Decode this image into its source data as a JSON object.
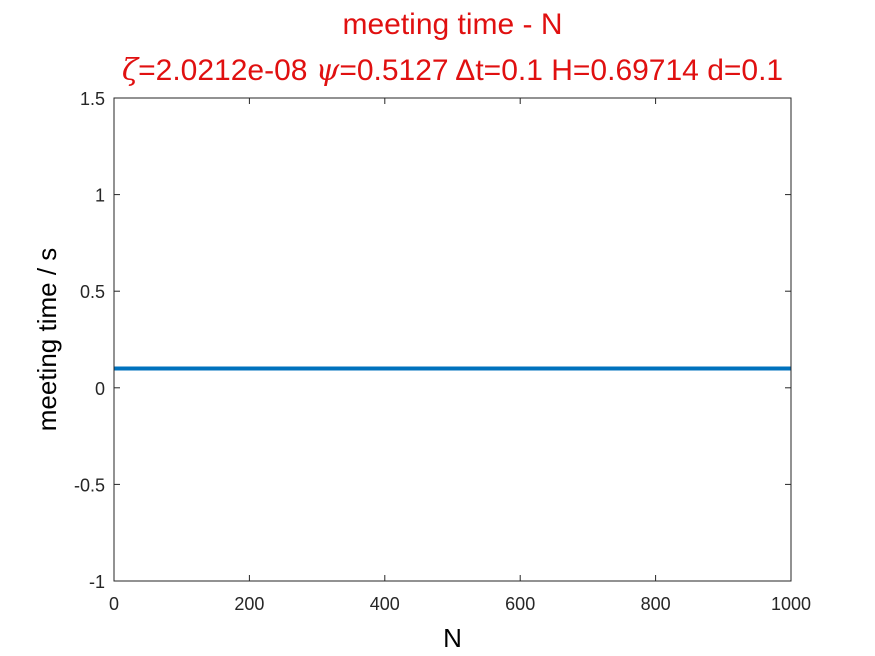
{
  "chart_data": {
    "type": "line",
    "title": "meeting time - N",
    "subtitle_parts": {
      "zeta_symbol": "ζ",
      "zeta_text": "=2.0212e-08 ",
      "psi_symbol": "ψ",
      "psi_text": "=0.5127 ",
      "delta_symbol": "Δ",
      "rest_text": "t=0.1 H=0.69714 d=0.1"
    },
    "xlabel": "N",
    "ylabel": "meeting time / s",
    "xlim": [
      0,
      1000
    ],
    "ylim": [
      -1,
      1.5
    ],
    "x_ticks": [
      0,
      200,
      400,
      600,
      800,
      1000
    ],
    "x_tick_labels": [
      "0",
      "200",
      "400",
      "600",
      "800",
      "1000"
    ],
    "y_ticks": [
      -1,
      -0.5,
      0,
      0.5,
      1,
      1.5
    ],
    "y_tick_labels": [
      "-1",
      "-0.5",
      "0",
      "0.5",
      "1",
      "1.5"
    ],
    "grid": false,
    "series": [
      {
        "x": [
          0,
          1000
        ],
        "y": [
          0.1,
          0.1
        ],
        "color": "#0072bd"
      }
    ],
    "title_color": "#e01010"
  }
}
